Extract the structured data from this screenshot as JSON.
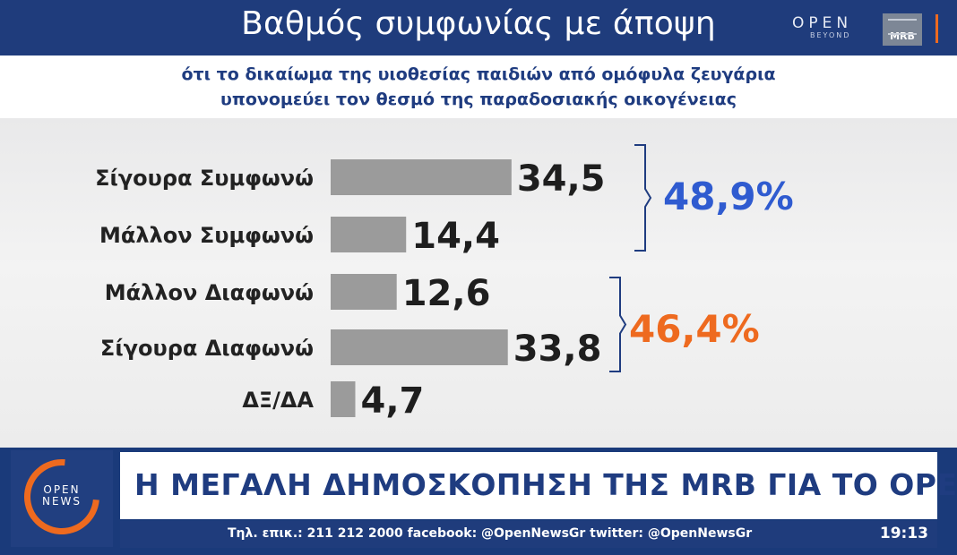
{
  "header": {
    "title": "Βαθμός συμφωνίας με άποψη",
    "logo_open": "OPEN",
    "logo_open_sub": "BEYOND",
    "logo_mrb": "MRB"
  },
  "subtitle": {
    "line1": "ότι το δικαίωμα της υιοθεσίας παιδιών από ομόφυλα ζευγάρια",
    "line2": "υπονομεύει τον θεσμό της παραδοσιακής οικογένειας"
  },
  "chart_data": {
    "type": "bar",
    "orientation": "horizontal",
    "categories": [
      "Σίγουρα Συμφωνώ",
      "Μάλλον Συμφωνώ",
      "Μάλλον Διαφωνώ",
      "Σίγουρα Διαφωνώ",
      "ΔΞ/ΔΑ"
    ],
    "values": [
      34.5,
      14.4,
      12.6,
      33.8,
      4.7
    ],
    "value_labels": [
      "34,5",
      "14,4",
      "12,6",
      "33,8",
      "4,7"
    ],
    "bar_color": "#9b9b9b",
    "groups": [
      {
        "label": "48,9%",
        "value": 48.9,
        "members": [
          0,
          1
        ],
        "color": "#2f5bd0"
      },
      {
        "label": "46,4%",
        "value": 46.4,
        "members": [
          2,
          3
        ],
        "color": "#ee6a1f"
      }
    ],
    "grid": false,
    "legend": "none"
  },
  "footer": {
    "news_logo_line1": "OPEN",
    "news_logo_line2": "NEWS",
    "headline": "Η ΜΕΓΑΛΗ ΔΗΜΟΣΚΟΠΗΣΗ ΤΗΣ MRB ΓΙΑ ΤΟ OPEN",
    "ticker": "Τηλ. επικ.: 211 212 2000 facebook: @OpenNewsGr twitter: @OpenNewsGr",
    "time": "19:13"
  },
  "colors": {
    "brand_blue": "#1f3c7c",
    "accent_orange": "#ee6a1f",
    "agree_blue": "#2f5bd0"
  }
}
